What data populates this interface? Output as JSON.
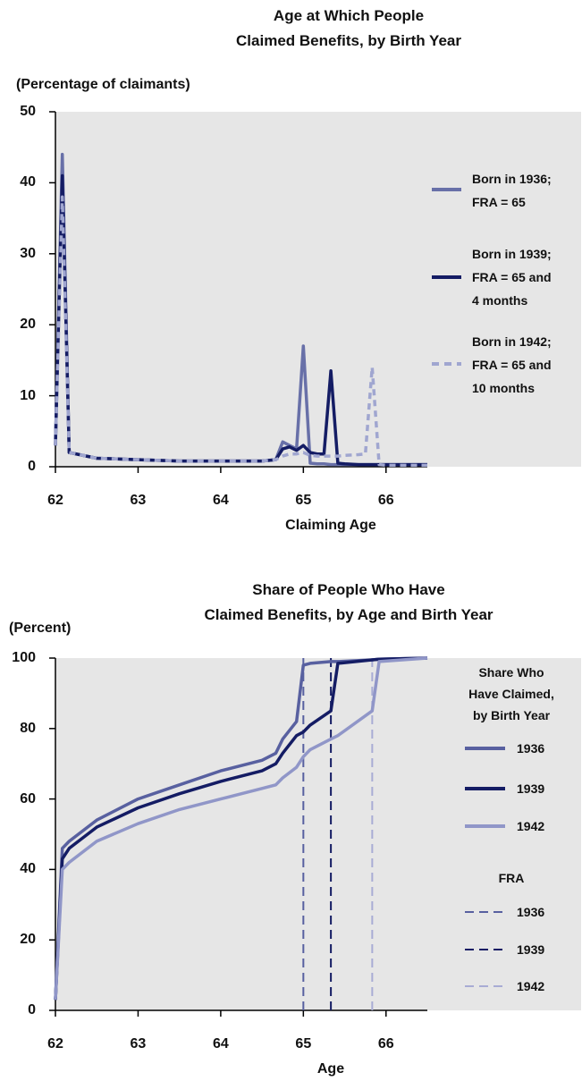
{
  "chart_data": [
    {
      "type": "line",
      "title": "Age at Which People\nClaimed Benefits, by Birth Year",
      "y_label": "(Percentage of claimants)",
      "x_label": "Claiming Age",
      "x": [
        62,
        62.083,
        62.167,
        62.5,
        63,
        63.5,
        64,
        64.5,
        64.667,
        64.75,
        64.833,
        64.917,
        65,
        65.083,
        65.167,
        65.25,
        65.333,
        65.417,
        65.5,
        65.667,
        65.75,
        65.833,
        65.917,
        66,
        66.5
      ],
      "series": [
        {
          "name": "Born in 1936;\nFRA = 65",
          "color": "#6870a8",
          "dashed": false,
          "values": [
            3,
            44,
            2,
            1.2,
            1,
            0.8,
            0.8,
            0.8,
            1,
            3.5,
            3,
            2.5,
            17,
            0.5,
            0.4,
            0.4,
            0.3,
            0.3,
            0.3,
            0.3,
            0.3,
            0.3,
            0.3,
            0.3,
            0.3
          ]
        },
        {
          "name": "Born in 1939;\nFRA = 65 and\n4 months",
          "color": "#141c64",
          "dashed": false,
          "values": [
            3,
            41,
            2,
            1.2,
            1,
            0.8,
            0.8,
            0.8,
            1,
            2.5,
            2.8,
            2.3,
            3,
            2,
            1.8,
            1.8,
            13.5,
            0.5,
            0.4,
            0.3,
            0.3,
            0.3,
            0.3,
            0.3,
            0.3
          ]
        },
        {
          "name": "Born in 1942;\nFRA = 65 and\n10 months",
          "color": "#a0a6d0",
          "dashed": true,
          "values": [
            3,
            38,
            2,
            1.2,
            1,
            0.8,
            0.8,
            0.8,
            1,
            1.5,
            1.8,
            1.8,
            2,
            1.6,
            1.5,
            1.5,
            1.5,
            1.5,
            1.6,
            1.7,
            1.8,
            14,
            0.3,
            0.2,
            0.2
          ]
        }
      ],
      "xlim": [
        62,
        66.5
      ],
      "ylim": [
        0,
        50
      ],
      "xticks": [
        62,
        63,
        64,
        65,
        66
      ],
      "yticks": [
        0,
        10,
        20,
        30,
        40,
        50
      ]
    },
    {
      "type": "line",
      "title": "Share of People Who Have\nClaimed Benefits, by Age and Birth Year",
      "y_label": "(Percent)",
      "x_label": "Age",
      "legend_title": "Share Who\nHave Claimed,\nby Birth Year",
      "x": [
        62,
        62.083,
        62.167,
        62.5,
        63,
        63.5,
        64,
        64.5,
        64.667,
        64.75,
        64.917,
        65,
        65.083,
        65.333,
        65.417,
        65.833,
        65.917,
        66.5
      ],
      "series": [
        {
          "name": "1936",
          "color": "#5860a0",
          "dashed": false,
          "values": [
            3,
            46,
            48,
            54,
            60,
            64,
            68,
            71,
            73,
            77,
            82,
            98,
            98.5,
            99,
            99,
            99.5,
            99.7,
            100
          ]
        },
        {
          "name": "1939",
          "color": "#141c64",
          "dashed": false,
          "values": [
            3,
            43,
            46,
            52,
            57.5,
            61.5,
            65,
            68,
            70,
            73,
            78,
            79,
            81,
            85,
            98.5,
            99.5,
            99.7,
            100
          ]
        },
        {
          "name": "1942",
          "color": "#9096c8",
          "dashed": false,
          "values": [
            3,
            40,
            42,
            48,
            53,
            57,
            60,
            63,
            64,
            66,
            69,
            72,
            74,
            77,
            78,
            85,
            99,
            100
          ]
        }
      ],
      "fra": {
        "title": "FRA",
        "lines": [
          {
            "name": "1936",
            "x": 65,
            "color": "#5860a0"
          },
          {
            "name": "1939",
            "x": 65.333,
            "color": "#141c64"
          },
          {
            "name": "1942",
            "x": 65.833,
            "color": "#a8acd4"
          }
        ]
      },
      "xlim": [
        62,
        66.5
      ],
      "ylim": [
        0,
        100
      ],
      "xticks": [
        62,
        63,
        64,
        65,
        66
      ],
      "yticks": [
        0,
        20,
        40,
        60,
        80,
        100
      ]
    }
  ]
}
